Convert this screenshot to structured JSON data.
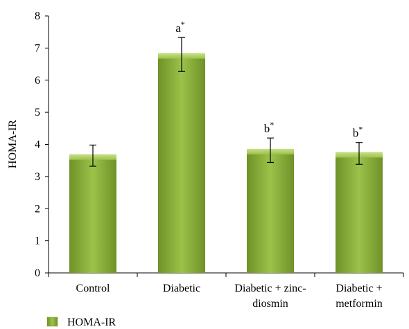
{
  "chart_data": {
    "type": "bar",
    "categories": [
      [
        "Control"
      ],
      [
        "Diabetic"
      ],
      [
        "Diabetic + zinc-",
        "diosmin"
      ],
      [
        "Diabetic +",
        "metformin"
      ]
    ],
    "series": [
      {
        "name": "HOMA-IR",
        "values": [
          3.65,
          6.8,
          3.82,
          3.72
        ],
        "errors": [
          0.33,
          0.53,
          0.38,
          0.34
        ],
        "color": "#8DB13A"
      }
    ],
    "annotations": [
      {
        "letter": "",
        "star": ""
      },
      {
        "letter": "a",
        "star": "*"
      },
      {
        "letter": "b",
        "star": "*"
      },
      {
        "letter": "b",
        "star": "*"
      }
    ],
    "xlabel": "",
    "ylabel": "HOMA-IR",
    "ylim": [
      0,
      8
    ],
    "yticks": [
      0,
      1,
      2,
      3,
      4,
      5,
      6,
      7,
      8
    ],
    "grid": false,
    "legend": {
      "position": "bottom-left",
      "label": "HOMA-IR"
    }
  }
}
